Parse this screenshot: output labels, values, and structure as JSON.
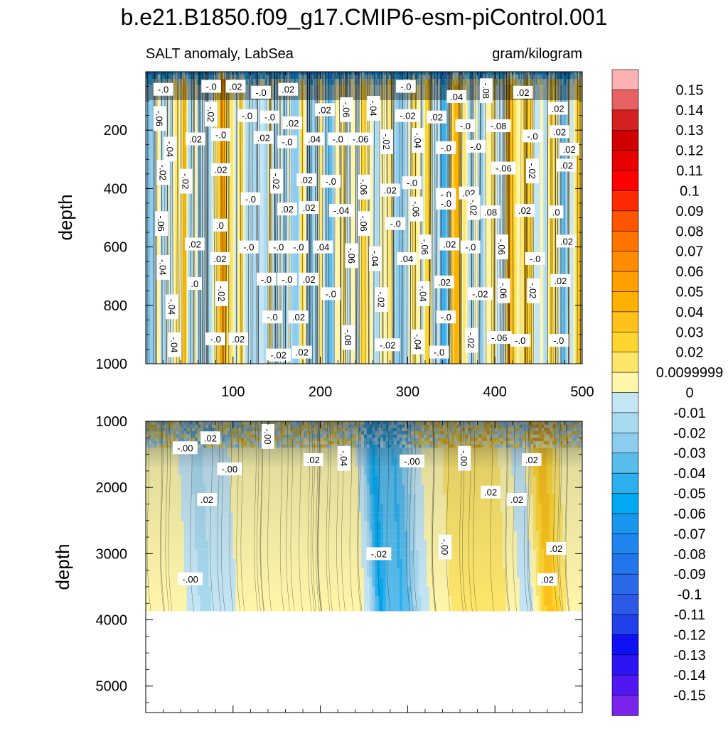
{
  "chart_data": {
    "type": "heatmap",
    "subtype": "depth-time filled contour (Hovmoller)",
    "title": "b.e21.B1850.f09_g17.CMIP6-esm-piControl.001",
    "left_subtitle": "SALT anomaly, LabSea",
    "right_subtitle": "gram/kilogram",
    "ylabel": "depth",
    "xlabel": "",
    "panels": [
      {
        "name": "upper",
        "ylim": [
          1000,
          0
        ],
        "yticks": [
          "200",
          "400",
          "600",
          "800",
          "1000"
        ],
        "xlim": [
          0,
          500
        ],
        "xticks": [
          "100",
          "200",
          "300",
          "400",
          "500"
        ],
        "contour_labels": [
          {
            "x": 20,
            "y": 60,
            "text": "-.0"
          },
          {
            "x": 75,
            "y": 50,
            "text": "-.0"
          },
          {
            "x": 103,
            "y": 50,
            "text": ".02"
          },
          {
            "x": 132,
            "y": 70,
            "text": "-.0"
          },
          {
            "x": 163,
            "y": 60,
            "text": ".02"
          },
          {
            "x": 298,
            "y": 50,
            "text": "-.0"
          },
          {
            "x": 356,
            "y": 85,
            "text": ".04"
          },
          {
            "x": 390,
            "y": 65,
            "text": "-.08"
          },
          {
            "x": 432,
            "y": 70,
            "text": ".02"
          },
          {
            "x": 472,
            "y": 125,
            "text": ".02"
          },
          {
            "x": 16,
            "y": 160,
            "text": "-.06"
          },
          {
            "x": 75,
            "y": 145,
            "text": "-.02"
          },
          {
            "x": 116,
            "y": 150,
            "text": "-.0"
          },
          {
            "x": 142,
            "y": 155,
            "text": "-.0"
          },
          {
            "x": 168,
            "y": 175,
            "text": ".02"
          },
          {
            "x": 205,
            "y": 130,
            "text": ".02"
          },
          {
            "x": 230,
            "y": 130,
            "text": "-.06"
          },
          {
            "x": 261,
            "y": 125,
            "text": "-.04"
          },
          {
            "x": 300,
            "y": 150,
            "text": "-.02"
          },
          {
            "x": 333,
            "y": 155,
            "text": ".02"
          },
          {
            "x": 366,
            "y": 185,
            "text": "-.0"
          },
          {
            "x": 404,
            "y": 185,
            "text": "-.08"
          },
          {
            "x": 474,
            "y": 205,
            "text": ".02"
          },
          {
            "x": 28,
            "y": 265,
            "text": "-.04"
          },
          {
            "x": 57,
            "y": 230,
            "text": ".02"
          },
          {
            "x": 86,
            "y": 215,
            "text": "-.0"
          },
          {
            "x": 135,
            "y": 225,
            "text": ".02"
          },
          {
            "x": 162,
            "y": 240,
            "text": "-.0"
          },
          {
            "x": 193,
            "y": 230,
            "text": ".04"
          },
          {
            "x": 220,
            "y": 230,
            "text": "-.0"
          },
          {
            "x": 246,
            "y": 230,
            "text": "-.06"
          },
          {
            "x": 276,
            "y": 240,
            "text": "-.02"
          },
          {
            "x": 312,
            "y": 235,
            "text": "-.04"
          },
          {
            "x": 344,
            "y": 260,
            "text": "-.0"
          },
          {
            "x": 378,
            "y": 255,
            "text": "-.0"
          },
          {
            "x": 443,
            "y": 220,
            "text": "-.0"
          },
          {
            "x": 485,
            "y": 265,
            "text": ".02"
          },
          {
            "x": 20,
            "y": 345,
            "text": "-.02"
          },
          {
            "x": 46,
            "y": 375,
            "text": "-.02"
          },
          {
            "x": 86,
            "y": 335,
            "text": ".02"
          },
          {
            "x": 150,
            "y": 375,
            "text": "-.02"
          },
          {
            "x": 184,
            "y": 370,
            "text": ".02"
          },
          {
            "x": 212,
            "y": 375,
            "text": "-.0"
          },
          {
            "x": 250,
            "y": 395,
            "text": "-.06"
          },
          {
            "x": 280,
            "y": 405,
            "text": ".02"
          },
          {
            "x": 305,
            "y": 380,
            "text": "-.0"
          },
          {
            "x": 344,
            "y": 420,
            "text": "-.0"
          },
          {
            "x": 370,
            "y": 415,
            "text": ".02"
          },
          {
            "x": 410,
            "y": 330,
            "text": "-.06"
          },
          {
            "x": 443,
            "y": 340,
            "text": "-.02"
          },
          {
            "x": 482,
            "y": 320,
            "text": ".02"
          },
          {
            "x": 120,
            "y": 435,
            "text": "-.0"
          },
          {
            "x": 162,
            "y": 470,
            "text": ".02"
          },
          {
            "x": 187,
            "y": 465,
            "text": ".02"
          },
          {
            "x": 224,
            "y": 475,
            "text": "-.04"
          },
          {
            "x": 250,
            "y": 520,
            "text": "-.06"
          },
          {
            "x": 310,
            "y": 470,
            "text": "-.06"
          },
          {
            "x": 344,
            "y": 450,
            "text": "-.0"
          },
          {
            "x": 376,
            "y": 465,
            "text": "-.02"
          },
          {
            "x": 395,
            "y": 480,
            "text": ".08"
          },
          {
            "x": 434,
            "y": 475,
            "text": ".02"
          },
          {
            "x": 470,
            "y": 480,
            "text": ".0"
          },
          {
            "x": 18,
            "y": 520,
            "text": "-.06"
          },
          {
            "x": 85,
            "y": 525,
            "text": ".0"
          },
          {
            "x": 286,
            "y": 520,
            "text": "-.0"
          },
          {
            "x": 56,
            "y": 590,
            "text": ".02"
          },
          {
            "x": 118,
            "y": 600,
            "text": "-.0"
          },
          {
            "x": 152,
            "y": 600,
            "text": "-.0"
          },
          {
            "x": 175,
            "y": 600,
            "text": "-.0"
          },
          {
            "x": 203,
            "y": 600,
            "text": ".04"
          },
          {
            "x": 236,
            "y": 630,
            "text": "-.06"
          },
          {
            "x": 263,
            "y": 640,
            "text": "-.04"
          },
          {
            "x": 299,
            "y": 640,
            "text": ".04"
          },
          {
            "x": 320,
            "y": 600,
            "text": "-.06"
          },
          {
            "x": 348,
            "y": 590,
            "text": ".02"
          },
          {
            "x": 372,
            "y": 600,
            "text": "-.0"
          },
          {
            "x": 408,
            "y": 600,
            "text": "-.06"
          },
          {
            "x": 446,
            "y": 640,
            "text": "-.0"
          },
          {
            "x": 482,
            "y": 580,
            "text": ".02"
          },
          {
            "x": 20,
            "y": 670,
            "text": "-.04"
          },
          {
            "x": 85,
            "y": 640,
            "text": ".02"
          },
          {
            "x": 138,
            "y": 710,
            "text": "-.0"
          },
          {
            "x": 162,
            "y": 710,
            "text": "-.0"
          },
          {
            "x": 187,
            "y": 710,
            "text": ".02"
          },
          {
            "x": 56,
            "y": 725,
            "text": ".0"
          },
          {
            "x": 342,
            "y": 720,
            "text": ".02"
          },
          {
            "x": 87,
            "y": 760,
            "text": "-.02"
          },
          {
            "x": 212,
            "y": 760,
            "text": "-.0"
          },
          {
            "x": 270,
            "y": 780,
            "text": "-.02"
          },
          {
            "x": 318,
            "y": 760,
            "text": "-.04"
          },
          {
            "x": 383,
            "y": 760,
            "text": "-.02"
          },
          {
            "x": 410,
            "y": 750,
            "text": "-.06"
          },
          {
            "x": 444,
            "y": 750,
            "text": "-.02"
          },
          {
            "x": 475,
            "y": 715,
            "text": ".02"
          },
          {
            "x": 30,
            "y": 805,
            "text": "-.04"
          },
          {
            "x": 145,
            "y": 840,
            "text": "-.0"
          },
          {
            "x": 175,
            "y": 840,
            "text": ".02"
          },
          {
            "x": 344,
            "y": 840,
            "text": "-.0"
          },
          {
            "x": 33,
            "y": 935,
            "text": "-.04"
          },
          {
            "x": 80,
            "y": 915,
            "text": "-.0"
          },
          {
            "x": 106,
            "y": 915,
            "text": ".02"
          },
          {
            "x": 232,
            "y": 910,
            "text": "-.08"
          },
          {
            "x": 277,
            "y": 935,
            "text": "-.02"
          },
          {
            "x": 312,
            "y": 925,
            "text": "-.04"
          },
          {
            "x": 373,
            "y": 920,
            "text": "-.02"
          },
          {
            "x": 405,
            "y": 910,
            "text": "-.06"
          },
          {
            "x": 429,
            "y": 920,
            "text": "-.0"
          },
          {
            "x": 473,
            "y": 920,
            "text": "-.0"
          },
          {
            "x": 152,
            "y": 970,
            "text": "-.02"
          },
          {
            "x": 179,
            "y": 960,
            "text": ".02"
          },
          {
            "x": 336,
            "y": 960,
            "text": "-.0"
          }
        ]
      },
      {
        "name": "lower",
        "ylim": [
          5400,
          1000
        ],
        "yticks": [
          "1000",
          "2000",
          "3000",
          "4000",
          "5000"
        ],
        "xlim": [
          0,
          500
        ],
        "bottom_depth": 3870,
        "contour_labels": [
          {
            "x": 45,
            "y": 1400,
            "text": "-.00"
          },
          {
            "x": 74,
            "y": 1250,
            "text": ".02"
          },
          {
            "x": 140,
            "y": 1230,
            "text": "-.00"
          },
          {
            "x": 96,
            "y": 1720,
            "text": "-.00"
          },
          {
            "x": 192,
            "y": 1580,
            "text": ".02"
          },
          {
            "x": 227,
            "y": 1560,
            "text": "-.04"
          },
          {
            "x": 305,
            "y": 1600,
            "text": "-.00"
          },
          {
            "x": 365,
            "y": 1560,
            "text": "-.00"
          },
          {
            "x": 442,
            "y": 1580,
            "text": ".02"
          },
          {
            "x": 70,
            "y": 2180,
            "text": ".02"
          },
          {
            "x": 395,
            "y": 2070,
            "text": ".02"
          },
          {
            "x": 425,
            "y": 2180,
            "text": ".02"
          },
          {
            "x": 267,
            "y": 3000,
            "text": "-.02"
          },
          {
            "x": 343,
            "y": 2900,
            "text": "-.00"
          },
          {
            "x": 470,
            "y": 2920,
            "text": ".02"
          },
          {
            "x": 51,
            "y": 3380,
            "text": "-.00"
          },
          {
            "x": 460,
            "y": 3390,
            "text": ".02"
          }
        ]
      }
    ],
    "colorbar": {
      "levels": [
        "0.15",
        "0.14",
        "0.13",
        "0.12",
        "0.11",
        "0.1",
        "0.09",
        "0.08",
        "0.07",
        "0.06",
        "0.05",
        "0.04",
        "0.03",
        "0.02",
        "0.0099999",
        "0",
        "-0.01",
        "-0.02",
        "-0.03",
        "-0.04",
        "-0.05",
        "-0.06",
        "-0.07",
        "-0.08",
        "-0.09",
        "-0.1",
        "-0.11",
        "-0.12",
        "-0.13",
        "-0.14",
        "-0.15"
      ],
      "colors_top_to_bottom": [
        "#ffb2b4",
        "#e86264",
        "#d42020",
        "#d00000",
        "#e80000",
        "#ff0000",
        "#ff2a00",
        "#ff5400",
        "#ff7400",
        "#ff8c00",
        "#ffa000",
        "#ffb000",
        "#ffc21a",
        "#ffd630",
        "#ffe66a",
        "#fff6aa",
        "#c4e6f4",
        "#a8daf0",
        "#8cccee",
        "#58bcec",
        "#2cb0ee",
        "#00aaf2",
        "#1896ee",
        "#1e86ee",
        "#2076ea",
        "#286aea",
        "#2c5ae6",
        "#2040ec",
        "#1010f4",
        "#2c14f4",
        "#5018f0",
        "#7a24ec"
      ]
    }
  }
}
